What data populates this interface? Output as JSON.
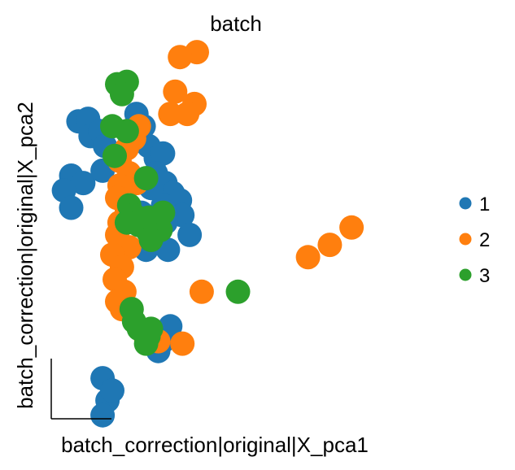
{
  "chart_data": {
    "type": "scatter",
    "title": "batch",
    "xlabel": "batch_correction|original|X_pca1",
    "ylabel": "batch_correction|original|X_pca2",
    "xticks": "none",
    "yticks": "none",
    "grid": false,
    "legend_position": "right",
    "xlim": [
      -0.5,
      16.5
    ],
    "ylim": [
      -1.5,
      14.3
    ],
    "series": [
      {
        "name": "1",
        "color": "#1f77b4",
        "points": [
          [
            1.4,
            11.2
          ],
          [
            1.8,
            11.3
          ],
          [
            1.9,
            10.6
          ],
          [
            2.3,
            10.8
          ],
          [
            2.5,
            10.2
          ],
          [
            1.1,
            9.0
          ],
          [
            1.6,
            8.7
          ],
          [
            2.4,
            9.2
          ],
          [
            0.8,
            8.4
          ],
          [
            1.1,
            7.7
          ],
          [
            3.8,
            11.5
          ],
          [
            4.1,
            11.0
          ],
          [
            4.3,
            10.2
          ],
          [
            4.6,
            9.7
          ],
          [
            4.9,
            9.9
          ],
          [
            4.6,
            9.1
          ],
          [
            5.0,
            8.7
          ],
          [
            5.3,
            8.3
          ],
          [
            5.6,
            8.0
          ],
          [
            5.7,
            7.4
          ],
          [
            5.0,
            7.1
          ],
          [
            4.6,
            6.4
          ],
          [
            4.2,
            6.0
          ],
          [
            5.1,
            6.0
          ],
          [
            6.0,
            6.6
          ],
          [
            4.9,
            7.8
          ],
          [
            4.4,
            8.5
          ],
          [
            4.0,
            7.5
          ],
          [
            5.2,
            2.9
          ],
          [
            4.7,
            1.9
          ],
          [
            4.9,
            2.3
          ],
          [
            2.4,
            0.8
          ],
          [
            2.6,
            -0.1
          ],
          [
            2.8,
            0.3
          ],
          [
            2.4,
            -0.7
          ]
        ]
      },
      {
        "name": "2",
        "color": "#ff7f0e",
        "points": [
          [
            6.3,
            14.0
          ],
          [
            5.6,
            13.8
          ],
          [
            5.4,
            12.4
          ],
          [
            6.2,
            11.9
          ],
          [
            5.9,
            11.5
          ],
          [
            5.2,
            11.5
          ],
          [
            3.9,
            11.0
          ],
          [
            3.7,
            10.5
          ],
          [
            3.4,
            10.1
          ],
          [
            3.1,
            9.6
          ],
          [
            3.5,
            9.1
          ],
          [
            3.8,
            8.7
          ],
          [
            3.1,
            8.6
          ],
          [
            3.0,
            8.1
          ],
          [
            3.4,
            7.6
          ],
          [
            3.8,
            7.3
          ],
          [
            3.1,
            7.1
          ],
          [
            3.0,
            6.6
          ],
          [
            3.5,
            6.1
          ],
          [
            2.8,
            5.8
          ],
          [
            3.2,
            5.3
          ],
          [
            2.9,
            4.8
          ],
          [
            3.3,
            4.3
          ],
          [
            3.0,
            3.9
          ],
          [
            3.2,
            3.6
          ],
          [
            4.2,
            2.4
          ],
          [
            4.7,
            2.3
          ],
          [
            5.7,
            2.2
          ],
          [
            6.5,
            4.3
          ],
          [
            10.9,
            5.7
          ],
          [
            11.8,
            6.2
          ],
          [
            12.7,
            6.9
          ]
        ]
      },
      {
        "name": "3",
        "color": "#2ca02c",
        "points": [
          [
            3.0,
            12.7
          ],
          [
            3.4,
            12.8
          ],
          [
            3.2,
            12.3
          ],
          [
            2.8,
            11.0
          ],
          [
            3.4,
            10.8
          ],
          [
            2.9,
            9.8
          ],
          [
            4.2,
            8.9
          ],
          [
            3.5,
            7.8
          ],
          [
            3.7,
            7.4
          ],
          [
            3.4,
            7.1
          ],
          [
            3.9,
            7.0
          ],
          [
            4.3,
            6.7
          ],
          [
            4.8,
            6.8
          ],
          [
            4.3,
            7.3
          ],
          [
            4.9,
            7.5
          ],
          [
            4.4,
            6.4
          ],
          [
            3.6,
            3.6
          ],
          [
            3.7,
            3.1
          ],
          [
            3.9,
            2.8
          ],
          [
            4.3,
            2.5
          ],
          [
            4.4,
            2.8
          ],
          [
            4.2,
            2.2
          ],
          [
            8.0,
            4.3
          ]
        ]
      }
    ]
  }
}
